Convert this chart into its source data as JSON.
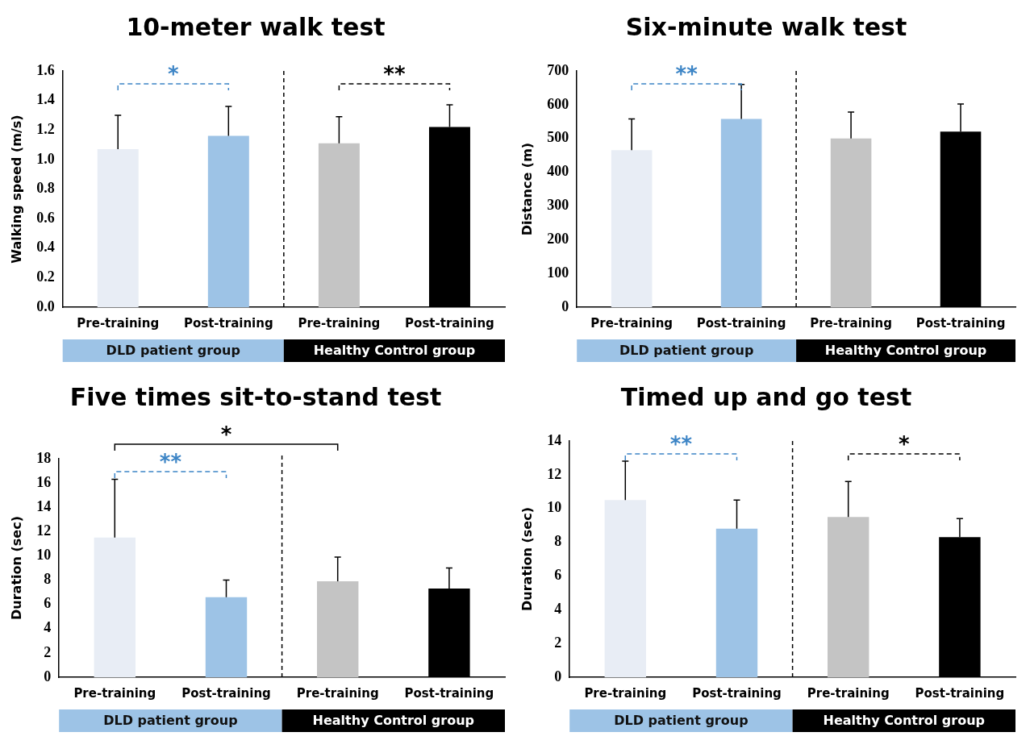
{
  "chart_data": [
    {
      "type": "bar",
      "title": "10-meter walk test",
      "ylabel": "Walking speed (m/s)",
      "categories": [
        "Pre-training",
        "Post-training",
        "Pre-training",
        "Post-training"
      ],
      "values": [
        1.07,
        1.16,
        1.11,
        1.22
      ],
      "errors": [
        [
          1.07,
          1.3
        ],
        [
          1.16,
          1.36
        ],
        [
          1.11,
          1.29
        ],
        [
          1.22,
          1.37
        ]
      ],
      "colors": [
        "#e8edf5",
        "#9dc3e6",
        "#c4c4c4",
        "#000000"
      ],
      "ylim": [
        0,
        1.6
      ],
      "yticks": [
        {
          "value": 0,
          "label": "0.0"
        },
        {
          "value": 0.2,
          "label": "0.2"
        },
        {
          "value": 0.4,
          "label": "0.4"
        },
        {
          "value": 0.6,
          "label": "0.6"
        },
        {
          "value": 0.8,
          "label": "0.8"
        },
        {
          "value": 1,
          "label": "1.0"
        },
        {
          "value": 1.2,
          "label": "1.2"
        },
        {
          "value": 1.4,
          "label": "1.4"
        },
        {
          "value": 1.6,
          "label": "1.6"
        }
      ],
      "grid": false,
      "legend": false,
      "annotations": [
        "DLD patient group",
        "Healthy Control group",
        "*",
        "**"
      ]
    },
    {
      "type": "bar",
      "title": "Six-minute walk test",
      "ylabel": "Distance (m)",
      "categories": [
        "Pre-training",
        "Post-training",
        "Pre-training",
        "Post-training"
      ],
      "values": [
        465,
        558,
        500,
        520
      ],
      "errors": [
        [
          465,
          558
        ],
        [
          558,
          660
        ],
        [
          500,
          578
        ],
        [
          520,
          602
        ]
      ],
      "colors": [
        "#e8edf5",
        "#9dc3e6",
        "#c4c4c4",
        "#000000"
      ],
      "ylim": [
        0,
        700
      ],
      "yticks": [
        0,
        100,
        200,
        300,
        400,
        500,
        600,
        700
      ],
      "grid": false,
      "legend": false,
      "annotations": [
        "DLD patient group",
        "Healthy Control group",
        "**"
      ]
    },
    {
      "type": "bar",
      "title": "Five times sit-to-stand test",
      "ylabel": "Duration (sec)",
      "categories": [
        "Pre-training",
        "Post-training",
        "Pre-training",
        "Post-training"
      ],
      "values": [
        11.5,
        6.6,
        7.9,
        7.3
      ],
      "errors": [
        [
          11.5,
          16.3
        ],
        [
          6.6,
          8.0
        ],
        [
          7.9,
          9.9
        ],
        [
          7.3,
          9.0
        ]
      ],
      "colors": [
        "#e8edf5",
        "#9dc3e6",
        "#c4c4c4",
        "#000000"
      ],
      "ylim": [
        0,
        18
      ],
      "yticks": [
        0,
        2,
        4,
        6,
        8,
        10,
        12,
        14,
        16,
        18
      ],
      "grid": false,
      "legend": false,
      "annotations": [
        "DLD patient group",
        "Healthy Control group",
        "**",
        "*"
      ]
    },
    {
      "type": "bar",
      "title": "Timed up and go test",
      "ylabel": "Duration (sec)",
      "categories": [
        "Pre-training",
        "Post-training",
        "Pre-training",
        "Post-training"
      ],
      "values": [
        10.5,
        8.8,
        9.5,
        8.3
      ],
      "errors": [
        [
          10.5,
          12.8
        ],
        [
          8.8,
          10.5
        ],
        [
          9.5,
          11.6
        ],
        [
          8.3,
          9.4
        ]
      ],
      "colors": [
        "#e8edf5",
        "#9dc3e6",
        "#c4c4c4",
        "#000000"
      ],
      "ylim": [
        0,
        14
      ],
      "yticks": [
        0,
        2,
        4,
        6,
        8,
        10,
        12,
        14
      ],
      "grid": false,
      "legend": false,
      "annotations": [
        "DLD patient group",
        "Healthy Control group",
        "**",
        "*"
      ]
    }
  ]
}
